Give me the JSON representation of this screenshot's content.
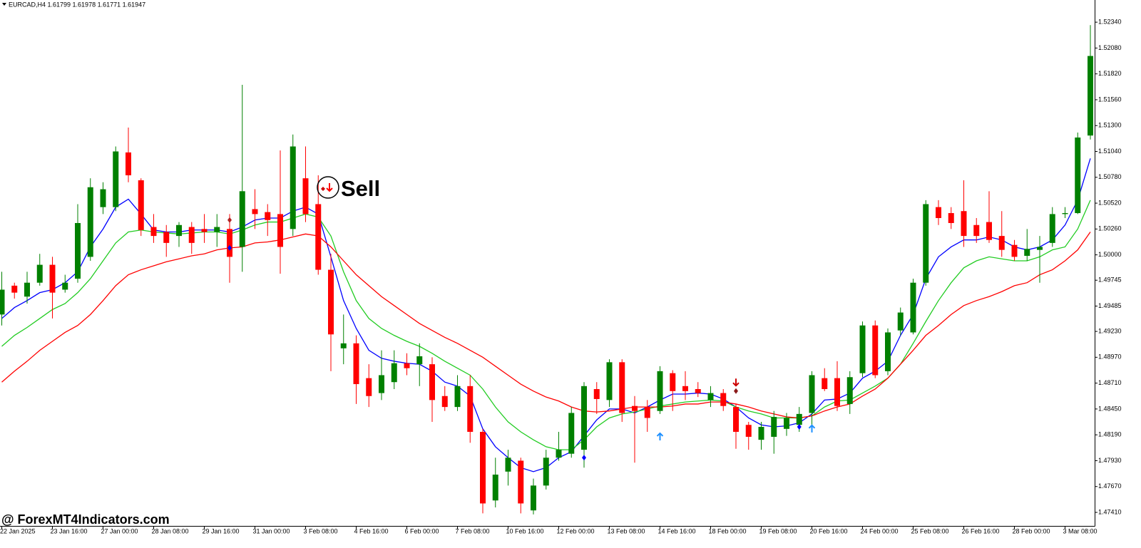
{
  "chart_data": {
    "type": "candlestick",
    "title": "EURCAD,H4  1.61799 1.61978 1.61771 1.61947",
    "annotation": "Sell",
    "watermark": "@ ForexMT4Indicators.com",
    "up_color": "#008000",
    "down_color": "#ff0000",
    "grid": false,
    "categories": [
      "22 Jan 2025",
      null,
      null,
      null,
      "23 Jan 16:00",
      null,
      null,
      null,
      "27 Jan 00:00",
      null,
      null,
      null,
      "28 Jan 08:00",
      null,
      null,
      null,
      "29 Jan 16:00",
      null,
      null,
      null,
      "31 Jan 00:00",
      null,
      null,
      null,
      "3 Feb 08:00",
      null,
      null,
      null,
      "4 Feb 16:00",
      null,
      null,
      null,
      "6 Feb 00:00",
      null,
      null,
      null,
      "7 Feb 08:00",
      null,
      null,
      null,
      "10 Feb 16:00",
      null,
      null,
      null,
      "12 Feb 00:00",
      null,
      null,
      null,
      "13 Feb 08:00",
      null,
      null,
      null,
      "14 Feb 16:00",
      null,
      null,
      null,
      "18 Feb 00:00",
      null,
      null,
      null,
      "19 Feb 08:00",
      null,
      null,
      null,
      "20 Feb 16:00",
      null,
      null,
      null,
      "24 Feb 00:00",
      null,
      null,
      null,
      "25 Feb 08:00",
      null,
      null,
      null,
      "26 Feb 16:00",
      null,
      null,
      null,
      "28 Feb 00:00",
      null,
      null,
      null,
      "3 Mar 08:00",
      null,
      null
    ],
    "open": [
      1.494,
      1.4969,
      1.4958,
      1.4972,
      1.499,
      1.4965,
      1.4976,
      1.4998,
      1.5048,
      1.5048,
      1.5103,
      1.5075,
      1.5028,
      1.5023,
      1.5019,
      1.5028,
      1.5026,
      1.5023,
      1.5026,
      1.5008,
      1.5046,
      1.5043,
      1.5041,
      1.5026,
      1.5077,
      1.5051,
      1.4985,
      1.4906,
      1.4911,
      1.4876,
      1.4861,
      1.4872,
      1.4891,
      1.489,
      1.489,
      1.4858,
      1.4847,
      1.4868,
      1.4822,
      1.4753,
      1.4782,
      1.4793,
      1.4743,
      1.4768,
      1.4796,
      1.48,
      1.4804,
      1.4865,
      1.4854,
      1.4892,
      1.4848,
      1.4847,
      1.4843,
      1.4881,
      1.4868,
      1.4865,
      1.4854,
      1.4861,
      1.4847,
      1.4829,
      1.4814,
      1.4817,
      1.4825,
      1.4829,
      1.4841,
      1.4876,
      1.4876,
      1.485,
      1.4881,
      1.4929,
      1.4883,
      1.4924,
      1.4922,
      1.4972,
      1.5048,
      1.5042,
      1.5044,
      1.503,
      1.5033,
      1.5019,
      1.501,
      1.4999,
      1.5005,
      1.5012,
      1.5041,
      1.5042,
      1.512
    ],
    "high": [
      1.4983,
      1.4972,
      1.4983,
      1.5001,
      1.4998,
      1.498,
      1.5051,
      1.5077,
      1.5073,
      1.5109,
      1.5128,
      1.5077,
      1.5041,
      1.503,
      1.5033,
      1.5033,
      1.5041,
      1.5041,
      1.5041,
      1.5171,
      1.5066,
      1.5051,
      1.5105,
      1.5121,
      1.5109,
      1.508,
      1.5001,
      1.494,
      1.4919,
      1.489,
      1.4904,
      1.4904,
      1.4901,
      1.4911,
      1.4897,
      1.4868,
      1.4879,
      1.4879,
      1.4825,
      1.4796,
      1.4804,
      1.4796,
      1.4775,
      1.4804,
      1.4822,
      1.4847,
      1.4872,
      1.4872,
      1.4895,
      1.4895,
      1.4858,
      1.4854,
      1.4888,
      1.4884,
      1.4883,
      1.4872,
      1.4868,
      1.4865,
      1.485,
      1.4832,
      1.4832,
      1.4843,
      1.4841,
      1.4847,
      1.4883,
      1.4886,
      1.4893,
      1.4883,
      1.4933,
      1.4934,
      1.4926,
      1.4947,
      1.4976,
      1.5055,
      1.5055,
      1.5048,
      1.5075,
      1.5037,
      1.5064,
      1.5044,
      1.5015,
      1.5026,
      1.5019,
      1.5048,
      1.5048,
      1.5123,
      1.5231
    ],
    "low": [
      1.4929,
      1.4956,
      1.4951,
      1.4969,
      1.4936,
      1.4962,
      1.4972,
      1.4994,
      1.5041,
      1.5044,
      1.5073,
      1.5019,
      1.5012,
      1.4998,
      1.5008,
      1.5001,
      1.5012,
      1.5008,
      1.4972,
      1.4983,
      1.5026,
      1.5019,
      1.4981,
      1.5019,
      1.5033,
      1.498,
      1.4883,
      1.489,
      1.485,
      1.4847,
      1.4854,
      1.4865,
      1.4879,
      1.4868,
      1.4832,
      1.4843,
      1.4843,
      1.4811,
      1.474,
      1.4746,
      1.4768,
      1.474,
      1.4739,
      1.4764,
      1.4793,
      1.4796,
      1.4786,
      1.484,
      1.4847,
      1.4832,
      1.4791,
      1.4822,
      1.484,
      1.4843,
      1.4854,
      1.4857,
      1.4847,
      1.4843,
      1.4805,
      1.4804,
      1.4804,
      1.48,
      1.4818,
      1.4822,
      1.4829,
      1.4863,
      1.4843,
      1.484,
      1.4877,
      1.4876,
      1.4879,
      1.4919,
      1.492,
      1.4969,
      1.503,
      1.5026,
      1.5008,
      1.5012,
      1.5012,
      1.4998,
      1.4994,
      1.4994,
      1.4972,
      1.5008,
      1.5037,
      1.5041,
      1.5116
    ],
    "close": [
      1.4965,
      1.4962,
      1.4972,
      1.499,
      1.4962,
      1.4972,
      1.5032,
      1.5068,
      1.5066,
      1.5104,
      1.508,
      1.5025,
      1.5019,
      1.5012,
      1.503,
      1.5012,
      1.5023,
      1.5028,
      1.4998,
      1.5064,
      1.5041,
      1.5035,
      1.5008,
      1.5109,
      1.5041,
      1.4985,
      1.492,
      1.4911,
      1.487,
      1.4858,
      1.4879,
      1.4891,
      1.4886,
      1.4898,
      1.4854,
      1.4847,
      1.4868,
      1.4822,
      1.475,
      1.4779,
      1.4796,
      1.475,
      1.4768,
      1.4796,
      1.4804,
      1.4841,
      1.4868,
      1.4855,
      1.4892,
      1.4841,
      1.4843,
      1.4836,
      1.4883,
      1.4863,
      1.4863,
      1.4861,
      1.4861,
      1.4848,
      1.4822,
      1.4817,
      1.4827,
      1.4837,
      1.4836,
      1.484,
      1.4879,
      1.4865,
      1.4848,
      1.4877,
      1.4929,
      1.4879,
      1.4922,
      1.4942,
      1.4972,
      1.5051,
      1.5037,
      1.5032,
      1.5019,
      1.5019,
      1.5015,
      1.5005,
      1.4998,
      1.5006,
      1.5008,
      1.5041,
      1.5042,
      1.5118,
      1.52
    ],
    "series": [
      {
        "color": "#0000ff",
        "values": [
          1.4936,
          1.4947,
          1.4954,
          1.4962,
          1.4965,
          1.4972,
          1.4983,
          1.5008,
          1.5026,
          1.5048,
          1.5056,
          1.5041,
          1.5025,
          1.5023,
          1.5023,
          1.5025,
          1.5025,
          1.5025,
          1.5023,
          1.5028,
          1.5035,
          1.5037,
          1.5037,
          1.5044,
          1.5048,
          1.5041,
          1.4998,
          1.4954,
          1.4926,
          1.4904,
          1.4896,
          1.4893,
          1.4891,
          1.489,
          1.4883,
          1.4872,
          1.4868,
          1.4858,
          1.4825,
          1.4807,
          1.4796,
          1.4786,
          1.4782,
          1.4786,
          1.4796,
          1.4802,
          1.4818,
          1.4834,
          1.4845,
          1.4845,
          1.4841,
          1.4847,
          1.4854,
          1.486,
          1.486,
          1.4861,
          1.486,
          1.4855,
          1.4847,
          1.4836,
          1.4829,
          1.4827,
          1.4828,
          1.4831,
          1.484,
          1.4854,
          1.4855,
          1.4861,
          1.4876,
          1.4883,
          1.4893,
          1.4919,
          1.494,
          1.4976,
          1.4998,
          1.5008,
          1.5015,
          1.5015,
          1.5018,
          1.5015,
          1.5008,
          1.5005,
          1.5008,
          1.5015,
          1.503,
          1.5055,
          1.5097
        ]
      },
      {
        "color": "#22cc22",
        "values": [
          1.4908,
          1.4919,
          1.4927,
          1.4936,
          1.4945,
          1.4951,
          1.4962,
          1.4976,
          1.4994,
          1.5012,
          1.5023,
          1.5025,
          1.5023,
          1.5022,
          1.5021,
          1.5022,
          1.5023,
          1.5023,
          1.5021,
          1.5025,
          1.503,
          1.5033,
          1.5033,
          1.5037,
          1.5041,
          1.5038,
          1.5019,
          1.4983,
          1.4954,
          1.4936,
          1.4926,
          1.4919,
          1.4913,
          1.4908,
          1.4901,
          1.4893,
          1.4886,
          1.4879,
          1.4865,
          1.4847,
          1.4832,
          1.4822,
          1.4814,
          1.4807,
          1.4804,
          1.4804,
          1.4814,
          1.4827,
          1.4836,
          1.484,
          1.4842,
          1.4845,
          1.4848,
          1.485,
          1.4852,
          1.4853,
          1.4854,
          1.4853,
          1.4847,
          1.4843,
          1.484,
          1.4836,
          1.4836,
          1.4836,
          1.4838,
          1.4847,
          1.4853,
          1.4854,
          1.4861,
          1.4868,
          1.4876,
          1.489,
          1.4911,
          1.4933,
          1.4954,
          1.4972,
          1.4987,
          1.4994,
          1.4998,
          1.4996,
          1.4994,
          1.4994,
          1.4998,
          1.5005,
          1.5008,
          1.5026,
          1.5055
        ]
      },
      {
        "color": "#ff0000",
        "values": [
          1.4872,
          1.4883,
          1.4893,
          1.4904,
          1.4913,
          1.4922,
          1.4929,
          1.494,
          1.4954,
          1.4969,
          1.498,
          1.4985,
          1.4989,
          1.4993,
          1.4996,
          1.4999,
          1.5001,
          1.5005,
          1.5007,
          1.5008,
          1.5012,
          1.5013,
          1.5015,
          1.5018,
          1.5021,
          1.5019,
          1.5008,
          1.4994,
          1.498,
          1.4969,
          1.4958,
          1.4949,
          1.494,
          1.4931,
          1.4924,
          1.4917,
          1.4911,
          1.4904,
          1.4897,
          1.4888,
          1.4879,
          1.487,
          1.4863,
          1.4857,
          1.4853,
          1.4847,
          1.4843,
          1.4842,
          1.4843,
          1.4845,
          1.4847,
          1.4847,
          1.4847,
          1.4848,
          1.485,
          1.485,
          1.4852,
          1.4852,
          1.485,
          1.4847,
          1.4843,
          1.484,
          1.4837,
          1.4836,
          1.4838,
          1.4843,
          1.4847,
          1.485,
          1.4858,
          1.4865,
          1.4876,
          1.489,
          1.4904,
          1.4919,
          1.4929,
          1.494,
          1.4949,
          1.4954,
          1.4958,
          1.4963,
          1.4969,
          1.4972,
          1.498,
          1.4985,
          1.4994,
          1.5005,
          1.5023
        ]
      }
    ],
    "signals": [
      {
        "index": 18,
        "price": 1.5035,
        "shape": "diamond",
        "color": "#b22222"
      },
      {
        "index": 18,
        "price": 1.5007,
        "shape": "diamond",
        "color": "#0000ff"
      },
      {
        "index": 46,
        "price": 1.4796,
        "shape": "diamond",
        "color": "#0000ff"
      },
      {
        "index": 52,
        "price": 1.4817,
        "shape": "arrow-up",
        "color": "#1e90ff"
      },
      {
        "index": 58,
        "price": 1.4872,
        "shape": "arrow-down",
        "color": "#cc0000"
      },
      {
        "index": 58,
        "price": 1.4863,
        "shape": "diamond",
        "color": "#8b1a1a"
      },
      {
        "index": 64,
        "price": 1.4825,
        "shape": "arrow-up",
        "color": "#1e90ff"
      },
      {
        "index": 63,
        "price": 1.4827,
        "shape": "diamond",
        "color": "#0000ff"
      }
    ],
    "ylim": [
      1.47274,
      1.52563
    ],
    "yticks": [
      {
        "value": 1.5234,
        "label": "1.52340"
      },
      {
        "value": 1.5208,
        "label": "1.52080"
      },
      {
        "value": 1.5182,
        "label": "1.51820"
      },
      {
        "value": 1.5156,
        "label": "1.51560"
      },
      {
        "value": 1.513,
        "label": "1.51300"
      },
      {
        "value": 1.5104,
        "label": "1.51040"
      },
      {
        "value": 1.5078,
        "label": "1.50780"
      },
      {
        "value": 1.5052,
        "label": "1.50520"
      },
      {
        "value": 1.5026,
        "label": "1.50260"
      },
      {
        "value": 1.5,
        "label": "1.50000"
      },
      {
        "value": 1.49745,
        "label": "1.49745"
      },
      {
        "value": 1.49485,
        "label": "1.49485"
      },
      {
        "value": 1.4923,
        "label": "1.49230"
      },
      {
        "value": 1.4897,
        "label": "1.48970"
      },
      {
        "value": 1.4871,
        "label": "1.48710"
      },
      {
        "value": 1.4845,
        "label": "1.48450"
      },
      {
        "value": 1.4819,
        "label": "1.48190"
      },
      {
        "value": 1.4793,
        "label": "1.47930"
      },
      {
        "value": 1.4767,
        "label": "1.47670"
      },
      {
        "value": 1.4741,
        "label": "1.47410"
      }
    ]
  }
}
